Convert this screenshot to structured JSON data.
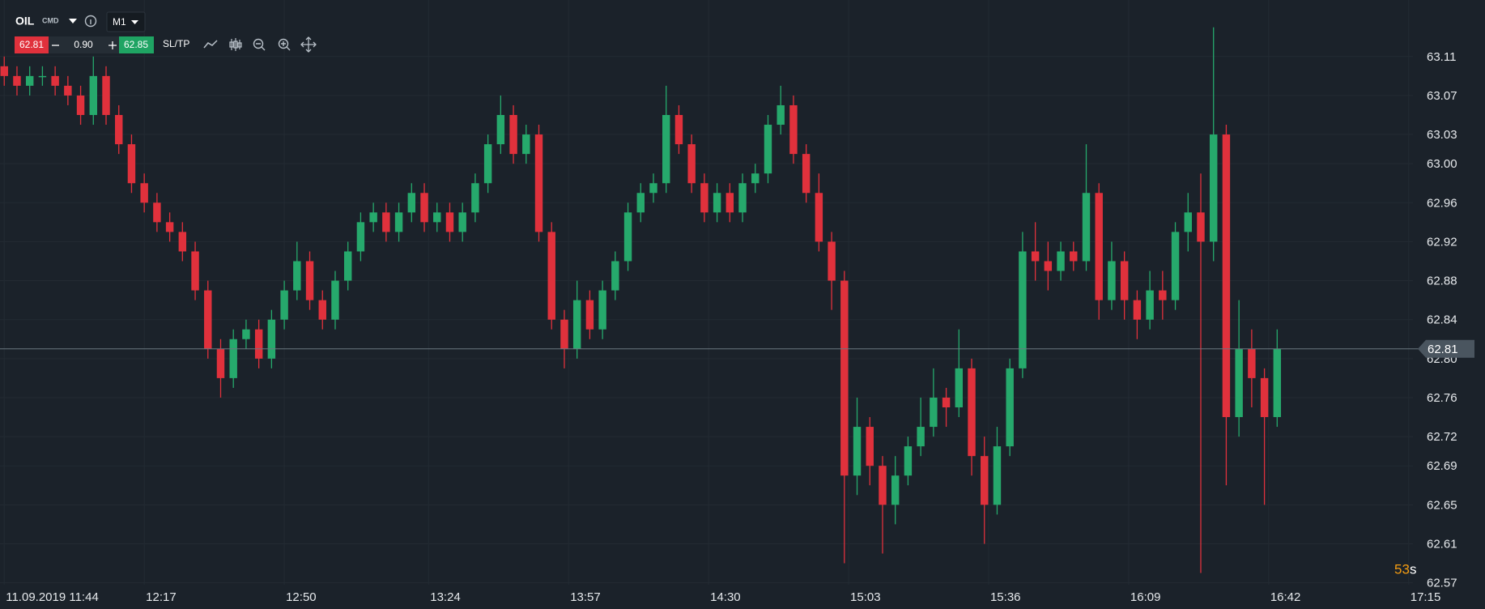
{
  "toolbar": {
    "symbol": "OIL",
    "market": "CMD",
    "timeframe": "M1",
    "sell": "62.81",
    "quantity": "0.90",
    "buy": "62.85",
    "sltp": "SL/TP",
    "countdown_value": "53",
    "countdown_unit": "s"
  },
  "chart_data": {
    "type": "candlestick",
    "x": [
      0,
      3,
      6,
      9,
      12,
      15,
      18,
      21,
      24,
      27,
      30,
      33,
      36,
      39,
      42,
      45,
      48,
      51,
      54,
      57,
      60,
      63,
      66,
      69,
      72,
      75,
      78,
      81,
      84,
      87,
      90,
      93,
      96,
      99,
      102,
      105,
      108,
      111,
      114,
      117,
      120,
      123,
      126,
      129,
      132,
      135,
      138,
      141,
      144,
      147,
      150,
      153,
      156,
      159,
      162,
      165,
      168,
      171,
      174,
      177,
      180,
      183,
      186,
      189,
      192,
      195,
      198,
      201,
      204,
      207,
      210,
      213,
      216,
      219,
      222,
      225,
      228,
      231,
      234,
      237,
      240,
      243,
      246,
      249,
      252,
      255,
      258,
      261,
      264,
      267,
      270,
      273,
      276,
      279,
      282,
      285,
      288,
      291,
      294,
      297,
      300
    ],
    "open": [
      63.1,
      63.09,
      63.08,
      63.09,
      63.09,
      63.08,
      63.07,
      63.05,
      63.09,
      63.05,
      63.02,
      62.98,
      62.96,
      62.94,
      62.93,
      62.91,
      62.87,
      62.81,
      62.78,
      62.82,
      62.83,
      62.8,
      62.84,
      62.87,
      62.9,
      62.86,
      62.84,
      62.88,
      62.91,
      62.94,
      62.95,
      62.93,
      62.95,
      62.97,
      62.94,
      62.95,
      62.93,
      62.95,
      62.98,
      63.02,
      63.05,
      63.01,
      63.03,
      62.93,
      62.84,
      62.81,
      62.86,
      62.83,
      62.87,
      62.9,
      62.95,
      62.97,
      62.98,
      63.05,
      63.02,
      62.98,
      62.95,
      62.97,
      62.95,
      62.98,
      62.99,
      63.04,
      63.06,
      63.01,
      62.97,
      62.92,
      62.88,
      62.68,
      62.73,
      62.69,
      62.65,
      62.68,
      62.71,
      62.73,
      62.76,
      62.75,
      62.79,
      62.7,
      62.65,
      62.71,
      62.79,
      62.91,
      62.9,
      62.89,
      62.91,
      62.9,
      62.97,
      62.86,
      62.9,
      62.86,
      62.84,
      62.87,
      62.86,
      62.93,
      62.95,
      62.92,
      63.03,
      62.74,
      62.81,
      62.78,
      62.74
    ],
    "high": [
      63.11,
      63.1,
      63.1,
      63.1,
      63.1,
      63.09,
      63.08,
      63.11,
      63.1,
      63.06,
      63.03,
      62.99,
      62.97,
      62.95,
      62.94,
      62.92,
      62.88,
      62.82,
      62.83,
      62.84,
      62.84,
      62.85,
      62.88,
      62.92,
      62.91,
      62.87,
      62.89,
      62.92,
      62.95,
      62.96,
      62.96,
      62.96,
      62.98,
      62.98,
      62.96,
      62.96,
      62.96,
      62.99,
      63.03,
      63.07,
      63.06,
      63.04,
      63.04,
      62.94,
      62.85,
      62.88,
      62.87,
      62.88,
      62.91,
      62.96,
      62.98,
      62.99,
      63.08,
      63.06,
      63.03,
      62.99,
      62.98,
      62.98,
      62.99,
      63.0,
      63.05,
      63.08,
      63.07,
      63.02,
      62.99,
      62.93,
      62.89,
      62.76,
      62.74,
      62.7,
      62.7,
      62.72,
      62.76,
      62.79,
      62.77,
      62.83,
      62.8,
      62.72,
      62.73,
      62.8,
      62.93,
      62.94,
      62.92,
      62.92,
      62.92,
      63.02,
      62.98,
      62.92,
      62.91,
      62.87,
      62.89,
      62.89,
      62.94,
      62.97,
      62.99,
      63.14,
      63.04,
      62.86,
      62.83,
      62.79,
      62.83
    ],
    "low": [
      63.08,
      63.07,
      63.07,
      63.08,
      63.07,
      63.06,
      63.04,
      63.04,
      63.04,
      63.01,
      62.97,
      62.95,
      62.93,
      62.92,
      62.9,
      62.86,
      62.8,
      62.76,
      62.77,
      62.81,
      62.79,
      62.79,
      62.83,
      62.86,
      62.85,
      62.83,
      62.83,
      62.87,
      62.9,
      62.93,
      62.92,
      62.92,
      62.94,
      62.93,
      62.93,
      62.92,
      62.92,
      62.94,
      62.97,
      63.01,
      63.0,
      63.0,
      62.92,
      62.83,
      62.79,
      62.8,
      62.82,
      62.82,
      62.86,
      62.89,
      62.94,
      62.96,
      62.97,
      63.01,
      62.97,
      62.94,
      62.94,
      62.94,
      62.94,
      62.97,
      62.98,
      63.03,
      63.0,
      62.96,
      62.91,
      62.85,
      62.59,
      62.66,
      62.67,
      62.6,
      62.63,
      62.67,
      62.7,
      62.72,
      62.73,
      62.74,
      62.68,
      62.61,
      62.64,
      62.7,
      62.78,
      62.88,
      62.87,
      62.88,
      62.89,
      62.89,
      62.84,
      62.85,
      62.84,
      62.82,
      62.83,
      62.84,
      62.85,
      62.91,
      62.58,
      62.9,
      62.67,
      62.72,
      62.75,
      62.65,
      62.73
    ],
    "close": [
      63.09,
      63.08,
      63.09,
      63.09,
      63.08,
      63.07,
      63.05,
      63.09,
      63.05,
      63.02,
      62.98,
      62.96,
      62.94,
      62.93,
      62.91,
      62.87,
      62.81,
      62.78,
      62.82,
      62.83,
      62.8,
      62.84,
      62.87,
      62.9,
      62.86,
      62.84,
      62.88,
      62.91,
      62.94,
      62.95,
      62.93,
      62.95,
      62.97,
      62.94,
      62.95,
      62.93,
      62.95,
      62.98,
      63.02,
      63.05,
      63.01,
      63.03,
      62.93,
      62.84,
      62.81,
      62.86,
      62.83,
      62.87,
      62.9,
      62.95,
      62.97,
      62.98,
      63.05,
      63.02,
      62.98,
      62.95,
      62.97,
      62.95,
      62.98,
      62.99,
      63.04,
      63.06,
      63.01,
      62.97,
      62.92,
      62.88,
      62.68,
      62.73,
      62.69,
      62.65,
      62.68,
      62.71,
      62.73,
      62.76,
      62.75,
      62.79,
      62.7,
      62.65,
      62.71,
      62.79,
      62.91,
      62.9,
      62.89,
      62.91,
      62.9,
      62.97,
      62.86,
      62.9,
      62.86,
      62.84,
      62.87,
      62.86,
      62.93,
      62.95,
      62.92,
      63.03,
      62.74,
      62.81,
      62.78,
      62.74,
      62.81
    ],
    "up_color": "#26a96c",
    "down_color": "#e0313c",
    "xlim": [
      -1,
      332
    ],
    "ylim": [
      62.568,
      63.168
    ],
    "xticks": [
      {
        "value": 0,
        "label": "11.09.2019 11:44"
      },
      {
        "value": 33,
        "label": "12:17"
      },
      {
        "value": 66,
        "label": "12:50"
      },
      {
        "value": 100,
        "label": "13:24"
      },
      {
        "value": 133,
        "label": "13:57"
      },
      {
        "value": 166,
        "label": "14:30"
      },
      {
        "value": 199,
        "label": "15:03"
      },
      {
        "value": 232,
        "label": "15:36"
      },
      {
        "value": 265,
        "label": "16:09"
      },
      {
        "value": 298,
        "label": "16:42"
      },
      {
        "value": 331,
        "label": "17:15"
      }
    ],
    "yticks": [
      63.11,
      63.07,
      63.03,
      {
        "value": 63.0,
        "label": "63.00"
      },
      62.96,
      62.92,
      62.88,
      62.84,
      {
        "value": 62.8,
        "label": "62.80"
      },
      62.76,
      62.72,
      62.69,
      62.65,
      62.61,
      62.57
    ],
    "grid": true,
    "last_price": 62.81
  }
}
